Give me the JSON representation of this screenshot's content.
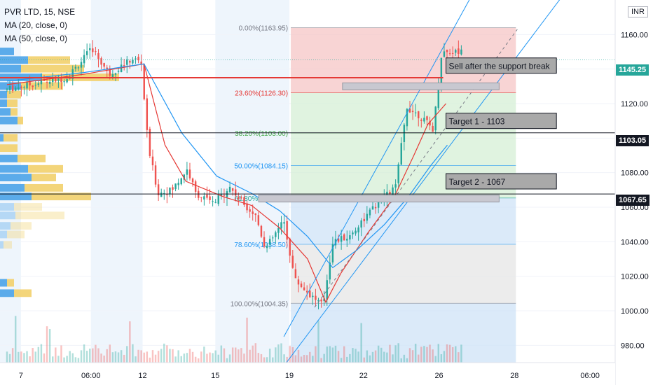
{
  "header": {
    "symbol_line": "PVR LTD, 15, NSE",
    "ma20_label": "MA (20, close, 0)",
    "ma50_label": "MA (50, close, 0)",
    "currency": "INR",
    "currency_small": "1"
  },
  "price_badges": {
    "last": "1145.25",
    "lvl1": "1103.05",
    "lvl2": "1067.65"
  },
  "colors": {
    "up": "#26a69a",
    "down": "#ef5350",
    "ma20": "#e53935",
    "ma50": "#2196f3",
    "channel": "#2196f3",
    "last_badge": "#26a69a",
    "level_badge": "#131722",
    "fib_pink": "#f6c6c6",
    "fib_green": "#d6efd6",
    "fib_blue": "#cfe3f7",
    "fib_gray": "#e6e6e6",
    "vp_blue": "#4aa3e8",
    "vp_yellow": "#f2d06b"
  },
  "chart_data": {
    "type": "candlestick",
    "ylim": [
      970,
      1180
    ],
    "y_ticks": [
      "1160.00",
      "1140.00",
      "1120.00",
      "1100.00",
      "1080.00",
      "1060.00",
      "1040.00",
      "1020.00",
      "1000.00",
      "980.00"
    ],
    "y_tick_values": [
      1160,
      1140,
      1120,
      1100,
      1080,
      1060,
      1040,
      1020,
      1000,
      980
    ],
    "x_tick_labels": [
      "7",
      "06:00",
      "12",
      "15",
      "19",
      "22",
      "26",
      "28",
      "06:00"
    ],
    "x_ticks": [
      0.5,
      5.5,
      9.2,
      14.4,
      19.7,
      25.0,
      30.4,
      35.8,
      41.2
    ],
    "x_domain": [
      -1,
      43
    ],
    "fib_levels": [
      {
        "label": "0.00%(1163.95)",
        "value": 1163.95
      },
      {
        "label": "23.60%(1126.30)",
        "value": 1126.3
      },
      {
        "label": "38.20%(1103.00)",
        "value": 1103.0
      },
      {
        "label": "50.00%(1084.15)",
        "value": 1084.15
      },
      {
        "label": "61.80%(1065.35)",
        "value": 1065.35
      },
      {
        "label": "78.60%(1038.50)",
        "value": 1038.5
      },
      {
        "label": "100.00%(1004.35)",
        "value": 1004.35
      }
    ],
    "horizontal_levels": [
      {
        "value": 1103.05,
        "color": "#131722"
      },
      {
        "value": 1067.65,
        "color": "#131722"
      },
      {
        "value": 1135.0,
        "color": "#e53935"
      }
    ],
    "annotations": [
      {
        "text": "Sell after the support break",
        "price": 1142
      },
      {
        "text": "Target 1 - 1103",
        "price": 1110
      },
      {
        "text": "Target 2 - 1067",
        "price": 1075
      }
    ],
    "candles_x_range": [
      -0.5,
      32.2
    ],
    "candle_count": 160,
    "price_path": [
      [
        -0.5,
        1128
      ],
      [
        2,
        1132
      ],
      [
        4,
        1135
      ],
      [
        5.8,
        1152
      ],
      [
        7,
        1137
      ],
      [
        8.7,
        1146
      ],
      [
        9.3,
        1144
      ],
      [
        9.8,
        1095
      ],
      [
        10.5,
        1068
      ],
      [
        11.5,
        1070
      ],
      [
        12.6,
        1082
      ],
      [
        13.2,
        1068
      ],
      [
        14.5,
        1062
      ],
      [
        15.6,
        1072
      ],
      [
        16.3,
        1065
      ],
      [
        17.5,
        1055
      ],
      [
        18.2,
        1036
      ],
      [
        19.5,
        1052
      ],
      [
        20.3,
        1018
      ],
      [
        21.3,
        1010
      ],
      [
        22.3,
        1003
      ],
      [
        23,
        1040
      ],
      [
        24.2,
        1043
      ],
      [
        25.1,
        1052
      ],
      [
        26.2,
        1062
      ],
      [
        27.5,
        1072
      ],
      [
        28.3,
        1118
      ],
      [
        29.2,
        1113
      ],
      [
        30.2,
        1105
      ],
      [
        30.8,
        1150
      ]
    ],
    "ma20_path": [
      [
        -0.5,
        1131
      ],
      [
        5,
        1137
      ],
      [
        9.3,
        1143
      ],
      [
        10.8,
        1096
      ],
      [
        12.3,
        1075
      ],
      [
        15,
        1066
      ],
      [
        17,
        1061
      ],
      [
        19,
        1048
      ],
      [
        21,
        1030
      ],
      [
        22.3,
        1005
      ],
      [
        23.4,
        1022
      ],
      [
        25.3,
        1045
      ],
      [
        27.2,
        1066
      ],
      [
        28.6,
        1090
      ],
      [
        29.6,
        1108
      ],
      [
        30.9,
        1120
      ]
    ],
    "ma50_path": [
      [
        -0.5,
        1133
      ],
      [
        5,
        1138
      ],
      [
        9.3,
        1143
      ],
      [
        12,
        1103
      ],
      [
        14.5,
        1078
      ],
      [
        17,
        1068
      ],
      [
        19,
        1058
      ],
      [
        21,
        1043
      ],
      [
        22.8,
        1025
      ],
      [
        24.5,
        1035
      ],
      [
        26.5,
        1050
      ],
      [
        28.2,
        1066
      ],
      [
        29.8,
        1084
      ],
      [
        31,
        1096
      ]
    ],
    "channel_lines": [
      [
        [
          19.3,
          985
        ],
        [
          32.7,
          1182
        ]
      ],
      [
        [
          19.3,
          968
        ],
        [
          39.2,
          1182
        ]
      ]
    ],
    "dashed_line": [
      [
        21.5,
        1002
      ],
      [
        36,
        1163
      ]
    ],
    "fib_box_x": [
      19.8,
      35.9
    ],
    "volume_profile_rows": [
      {
        "price": 1150,
        "blue": 20,
        "yellow": 0
      },
      {
        "price": 1145,
        "blue": 40,
        "yellow": 60
      },
      {
        "price": 1140,
        "blue": 30,
        "yellow": 90
      },
      {
        "price": 1135,
        "blue": 60,
        "yellow": 110
      },
      {
        "price": 1130,
        "blue": 30,
        "yellow": 60
      },
      {
        "price": 1125,
        "blue": 10,
        "yellow": 20
      },
      {
        "price": 1120,
        "blue": 10,
        "yellow": 15
      },
      {
        "price": 1115,
        "blue": 15,
        "yellow": 10
      },
      {
        "price": 1110,
        "blue": 25,
        "yellow": 8
      },
      {
        "price": 1100,
        "blue": 5,
        "yellow": 20
      },
      {
        "price": 1094,
        "blue": 0,
        "yellow": 25
      },
      {
        "price": 1088,
        "blue": 25,
        "yellow": 40
      },
      {
        "price": 1082,
        "blue": 40,
        "yellow": 50
      },
      {
        "price": 1077,
        "blue": 45,
        "yellow": 35
      },
      {
        "price": 1071,
        "blue": 35,
        "yellow": 55
      },
      {
        "price": 1066,
        "blue": 45,
        "yellow": 85
      },
      {
        "price": 1060,
        "blue": 20,
        "yellow": 40
      },
      {
        "price": 1055,
        "blue": 22,
        "yellow": 70
      },
      {
        "price": 1049,
        "blue": 15,
        "yellow": 30
      },
      {
        "price": 1044,
        "blue": 10,
        "yellow": 25
      },
      {
        "price": 1038,
        "blue": 5,
        "yellow": 12
      },
      {
        "price": 1016,
        "blue": 10,
        "yellow": 10
      },
      {
        "price": 1010,
        "blue": 20,
        "yellow": 25
      }
    ],
    "current_price": 1145.25
  }
}
